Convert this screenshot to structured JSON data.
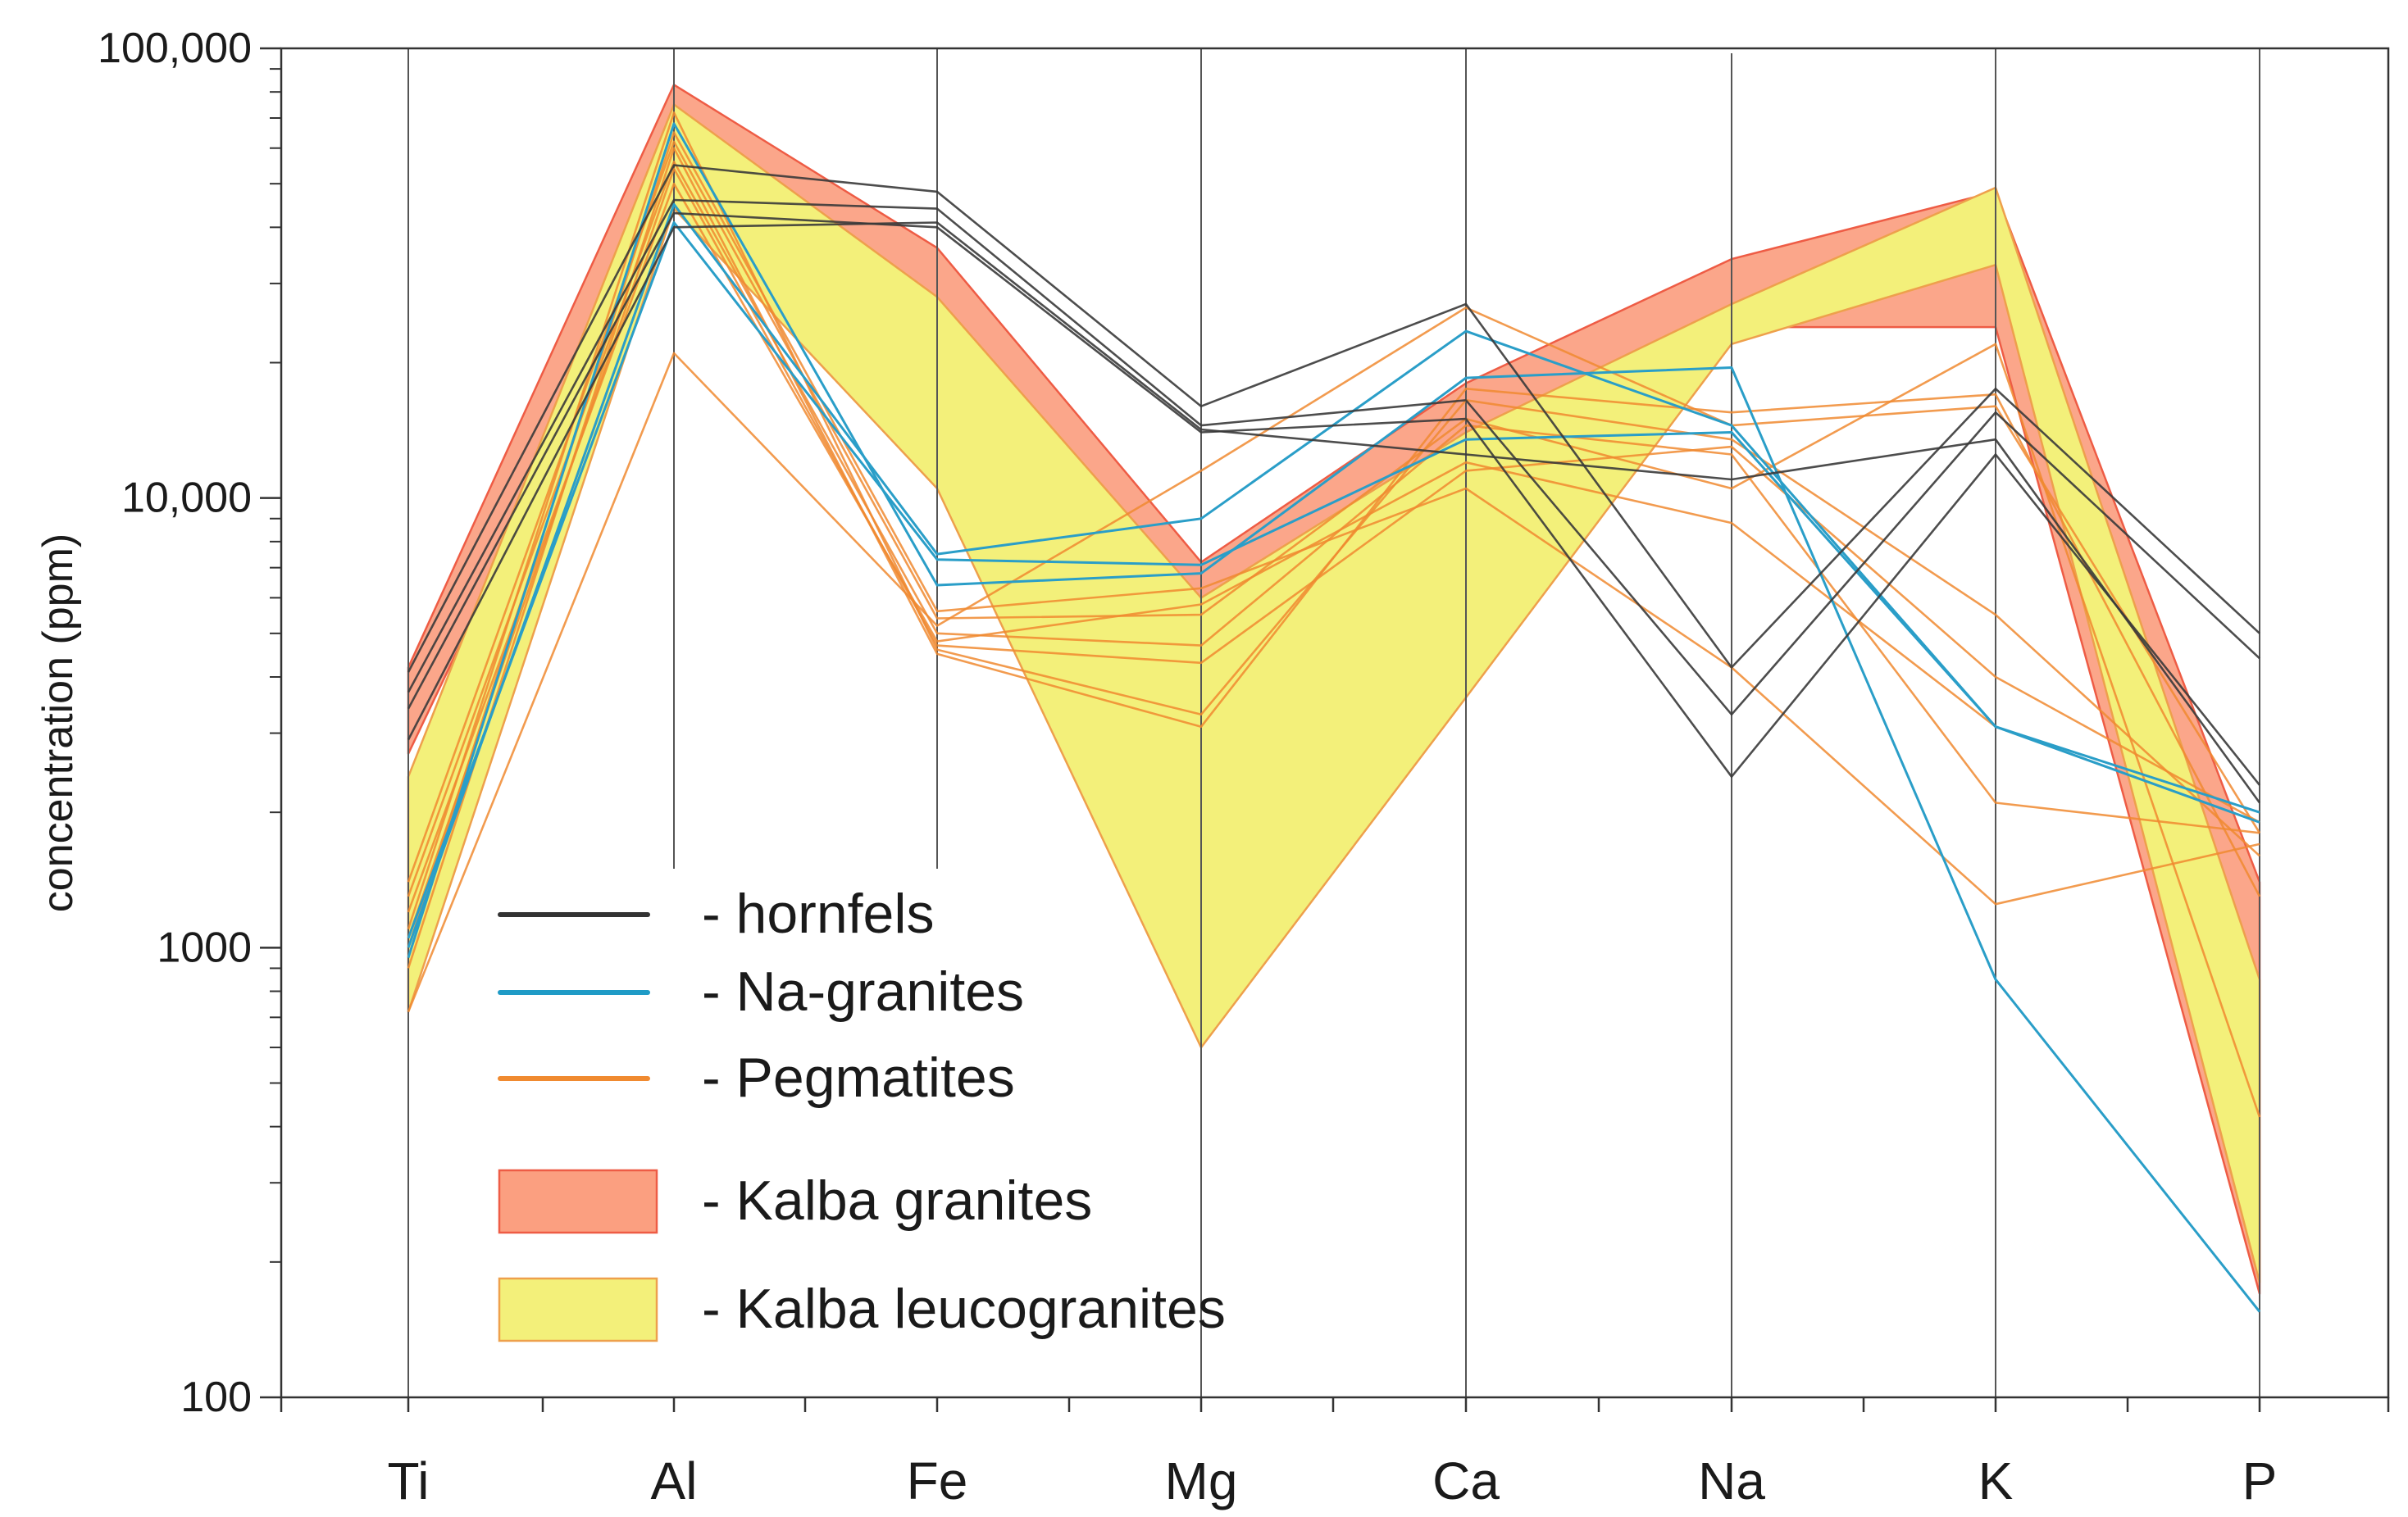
{
  "chart_data": {
    "type": "line",
    "title": "",
    "xlabel": "",
    "ylabel": "concentration (ppm)",
    "yscale": "log",
    "ylim": [
      100,
      100000
    ],
    "categories": [
      "Ti",
      "Al",
      "Fe",
      "Mg",
      "Ca",
      "Na",
      "K",
      "P"
    ],
    "y_ticks": [
      {
        "value": 100,
        "label": "100"
      },
      {
        "value": 1000,
        "label": "1000"
      },
      {
        "value": 10000,
        "label": "10,000"
      },
      {
        "value": 100000,
        "label": "100,000"
      }
    ],
    "colors": {
      "hornfels": "#3a3a3a",
      "na_granites": "#2a9ec8",
      "pegmatites": "#f08a30",
      "kalba_granites_fill": "#fba68a",
      "kalba_granites_stroke": "#ee5c45",
      "kalba_leucogranites_fill": "#f3f07a",
      "kalba_leucogranites_stroke": "#eea04c",
      "axis": "#333333"
    },
    "legend": [
      {
        "key": "hornfels",
        "label": "- hornfels",
        "kind": "line",
        "color": "#333333"
      },
      {
        "key": "na_granites",
        "label": "- Na-granites",
        "kind": "line",
        "color": "#1f9bc6"
      },
      {
        "key": "pegmatites",
        "label": "- Pegmatites",
        "kind": "line",
        "color": "#f08a30"
      },
      {
        "key": "kalba_granites",
        "label": "- Kalba granites",
        "kind": "band",
        "fill": "#fb9f80",
        "stroke": "#ee5c45"
      },
      {
        "key": "kalba_leucogranites",
        "label": "- Kalba leucogranites",
        "kind": "band",
        "fill": "#f3f07a",
        "stroke": "#eea04c"
      }
    ],
    "bands": [
      {
        "name": "Kalba granites",
        "upper": [
          4200,
          83000,
          36000,
          7200,
          18000,
          34000,
          48000,
          1400
        ],
        "lower": [
          2700,
          47000,
          12000,
          1900,
          7000,
          24000,
          24000,
          170
        ]
      },
      {
        "name": "Kalba leucogranites",
        "upper": [
          2400,
          75000,
          28000,
          6000,
          14000,
          27000,
          49000,
          850
        ],
        "lower": [
          720,
          44000,
          10500,
          600,
          3600,
          22000,
          33000,
          180
        ]
      }
    ],
    "series": [
      {
        "group": "hornfels",
        "name": "Hornfels 1",
        "values": [
          4100,
          55000,
          48000,
          16000,
          27000,
          4200,
          17500,
          5000
        ]
      },
      {
        "group": "hornfels",
        "name": "Hornfels 2",
        "values": [
          3700,
          46000,
          44000,
          14500,
          16500,
          3300,
          15500,
          4400
        ]
      },
      {
        "group": "hornfels",
        "name": "Hornfels 3",
        "values": [
          3400,
          43000,
          40000,
          14000,
          15000,
          2400,
          12500,
          2300
        ]
      },
      {
        "group": "hornfels",
        "name": "Hornfels 4",
        "values": [
          2900,
          40000,
          41000,
          14200,
          12500,
          11000,
          13500,
          2100
        ]
      },
      {
        "group": "na_granites",
        "name": "Na-granite 1",
        "values": [
          1000,
          45000,
          7500,
          9000,
          23500,
          14500,
          3100,
          1900
        ]
      },
      {
        "group": "na_granites",
        "name": "Na-granite 2",
        "values": [
          950,
          68000,
          6400,
          6800,
          18500,
          19500,
          850,
          155
        ]
      },
      {
        "group": "na_granites",
        "name": "Na-granite 3",
        "values": [
          1050,
          41000,
          7300,
          7100,
          13500,
          14000,
          3100,
          2000
        ]
      },
      {
        "group": "pegmatites",
        "name": "Pegmatite 1",
        "values": [
          720,
          21000,
          5200,
          11500,
          26500,
          14500,
          16000,
          1800
        ]
      },
      {
        "group": "pegmatites",
        "name": "Pegmatite 2",
        "values": [
          900,
          60000,
          4500,
          3100,
          17500,
          15500,
          17000,
          1300
        ]
      },
      {
        "group": "pegmatites",
        "name": "Pegmatite 3",
        "values": [
          1100,
          72000,
          4600,
          3300,
          16500,
          13500,
          5500,
          1600
        ]
      },
      {
        "group": "pegmatites",
        "name": "Pegmatite 4",
        "values": [
          1300,
          56000,
          5000,
          4700,
          14500,
          12500,
          2100,
          1800
        ]
      },
      {
        "group": "pegmatites",
        "name": "Pegmatite 5",
        "values": [
          1000,
          65000,
          5600,
          6300,
          10500,
          4200,
          1250,
          1700
        ]
      },
      {
        "group": "pegmatites",
        "name": "Pegmatite 6",
        "values": [
          1200,
          50000,
          4800,
          5800,
          12000,
          8800,
          3100,
          1900
        ]
      },
      {
        "group": "pegmatites",
        "name": "Pegmatite 7",
        "values": [
          1400,
          62000,
          5400,
          5500,
          15000,
          10500,
          22000,
          420
        ]
      },
      {
        "group": "pegmatites",
        "name": "Pegmatite 8",
        "values": [
          1050,
          54000,
          4700,
          4300,
          11500,
          13000,
          4000,
          1900
        ]
      }
    ]
  }
}
